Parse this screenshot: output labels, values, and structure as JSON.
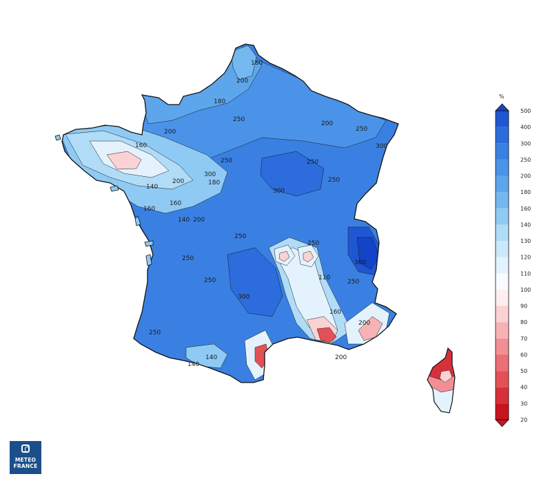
{
  "legend": {
    "unit": "%",
    "levels": [
      "20",
      "30",
      "40",
      "50",
      "60",
      "70",
      "80",
      "90",
      "100",
      "110",
      "120",
      "130",
      "140",
      "160",
      "180",
      "200",
      "250",
      "300",
      "400",
      "500"
    ],
    "colors": [
      "#c8141e",
      "#d8303a",
      "#e45058",
      "#ec6e76",
      "#f28f95",
      "#f7b2b6",
      "#fad2d4",
      "#fdeeee",
      "#f8fbff",
      "#e3f2fd",
      "#cce8fb",
      "#b0dcf8",
      "#8fcaf4",
      "#74b8f0",
      "#5ea6ec",
      "#4a93e8",
      "#3a80e3",
      "#2c6cdc",
      "#1f57d3",
      "#1344c8"
    ]
  },
  "contour_labels": [
    "180",
    "200",
    "180",
    "250",
    "200",
    "250",
    "300",
    "250",
    "200",
    "160",
    "140",
    "200",
    "160",
    "140",
    "180",
    "250",
    "300",
    "160",
    "200",
    "250",
    "250",
    "300",
    "250",
    "300",
    "110",
    "250",
    "250",
    "200",
    "160",
    "250",
    "140",
    "140",
    "250",
    "300",
    "200"
  ],
  "logo": {
    "line1": "METEO",
    "line2": "FRANCE"
  }
}
